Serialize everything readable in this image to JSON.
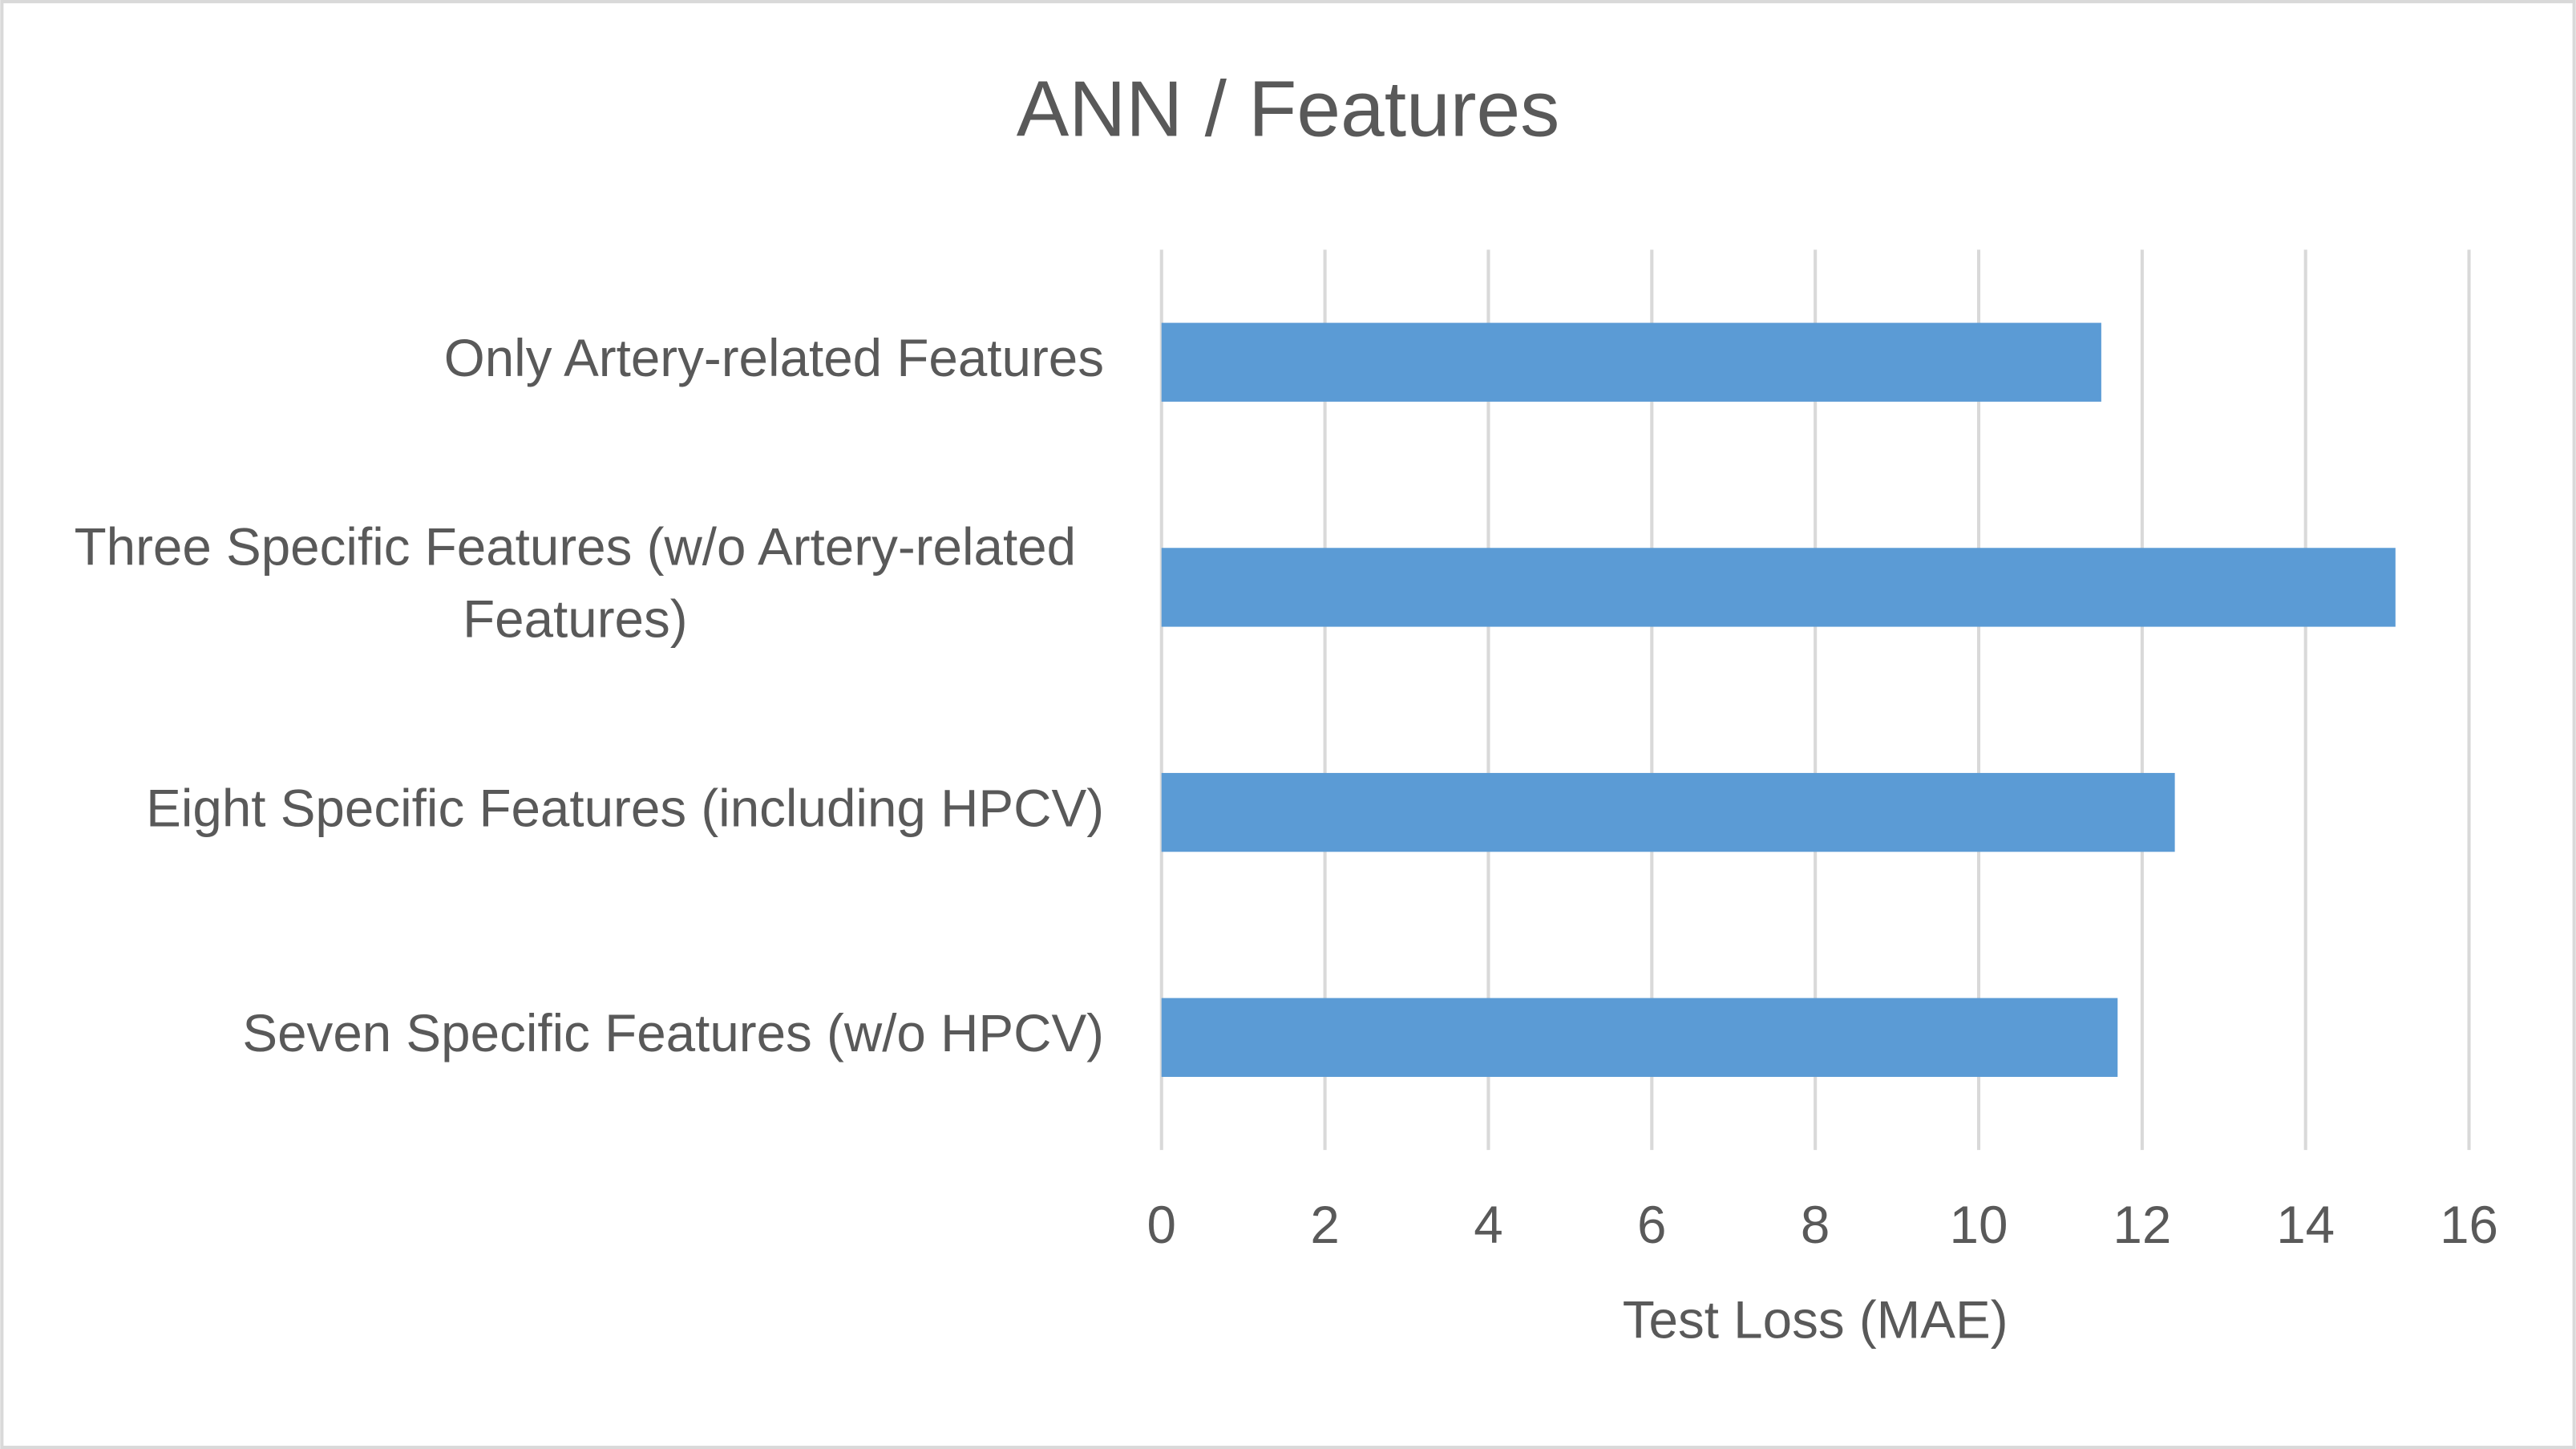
{
  "chart_data": {
    "type": "bar",
    "orientation": "horizontal",
    "title": "ANN / Features",
    "categories": [
      "Only Artery-related Features",
      "Three Specific Features (w/o Artery-related Features)",
      "Eight Specific Features (including HPCV)",
      "Seven Specific Features (w/o HPCV)"
    ],
    "values": [
      11.5,
      15.1,
      12.4,
      11.7
    ],
    "color": "#5b9bd5",
    "x_label": "Test Loss (MAE)",
    "xlim": [
      0,
      16
    ],
    "xticks": [
      0,
      2,
      4,
      6,
      8,
      10,
      12,
      14,
      16
    ],
    "grid": true
  }
}
